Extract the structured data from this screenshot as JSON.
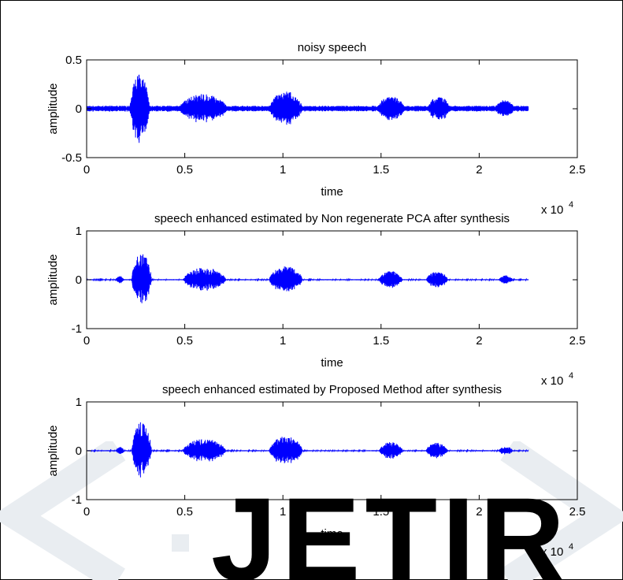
{
  "chart_data": [
    {
      "type": "line",
      "title": "noisy speech",
      "xlabel": "time",
      "ylabel": "amplitude",
      "xlim": [
        0,
        25000
      ],
      "ylim": [
        -0.5,
        0.5
      ],
      "x_ticks": [
        0,
        5000,
        10000,
        15000,
        20000,
        25000
      ],
      "x_tick_labels": [
        "0",
        "0.5",
        "1",
        "1.5",
        "2",
        "2.5"
      ],
      "x_multiplier": "x 10",
      "x_multiplier_exp": "4",
      "y_ticks": [
        -0.5,
        0,
        0.5
      ],
      "y_tick_labels": [
        "-0.5",
        "0",
        "0.5"
      ],
      "grid": false,
      "series_color": "#0000ff",
      "signal": {
        "x_range": [
          0,
          22500
        ],
        "noise_floor": 0.03,
        "segments": [
          {
            "x": [
              2200,
              3200
            ],
            "peak": 0.35
          },
          {
            "x": [
              4700,
              7200
            ],
            "peak": 0.15
          },
          {
            "x": [
              9300,
              11000
            ],
            "peak": 0.18
          },
          {
            "x": [
              14800,
              16200
            ],
            "peak": 0.13
          },
          {
            "x": [
              17400,
              18500
            ],
            "peak": 0.13
          },
          {
            "x": [
              20800,
              21800
            ],
            "peak": 0.09
          }
        ]
      }
    },
    {
      "type": "line",
      "title": "speech enhanced estimated by Non regenerate PCA after synthesis",
      "xlabel": "time",
      "ylabel": "amplitude",
      "xlim": [
        0,
        25000
      ],
      "ylim": [
        -1,
        1
      ],
      "x_ticks": [
        0,
        5000,
        10000,
        15000,
        20000,
        25000
      ],
      "x_tick_labels": [
        "0",
        "0.5",
        "1",
        "1.5",
        "2",
        "2.5"
      ],
      "x_multiplier": "x 10",
      "x_multiplier_exp": "4",
      "y_ticks": [
        -1,
        0,
        1
      ],
      "y_tick_labels": [
        "-1",
        "0",
        "1"
      ],
      "grid": false,
      "series_color": "#0000ff",
      "signal": {
        "x_range": [
          0,
          22500
        ],
        "noise_floor": 0.01,
        "segments": [
          {
            "x": [
              1500,
              1900
            ],
            "peak": 0.08
          },
          {
            "x": [
              2300,
              3300
            ],
            "peak": 0.55
          },
          {
            "x": [
              4900,
              7100
            ],
            "peak": 0.25
          },
          {
            "x": [
              9300,
              11000
            ],
            "peak": 0.28
          },
          {
            "x": [
              14900,
              16100
            ],
            "peak": 0.18
          },
          {
            "x": [
              17300,
              18400
            ],
            "peak": 0.17
          },
          {
            "x": [
              21000,
              21700
            ],
            "peak": 0.09
          }
        ]
      }
    },
    {
      "type": "line",
      "title": "speech enhanced estimated by Proposed Method after synthesis",
      "xlabel": "time",
      "ylabel": "amplitude",
      "xlim": [
        0,
        25000
      ],
      "ylim": [
        -1,
        1
      ],
      "x_ticks": [
        0,
        5000,
        10000,
        15000,
        20000,
        25000
      ],
      "x_tick_labels": [
        "0",
        "0.5",
        "1",
        "1.5",
        "2",
        "2.5"
      ],
      "x_multiplier": "x 10",
      "x_multiplier_exp": "4",
      "y_ticks": [
        -1,
        0,
        1
      ],
      "y_tick_labels": [
        "-1",
        "0",
        "1"
      ],
      "grid": false,
      "series_color": "#0000ff",
      "signal": {
        "x_range": [
          0,
          22500
        ],
        "noise_floor": 0.01,
        "segments": [
          {
            "x": [
              1500,
              1900
            ],
            "peak": 0.08
          },
          {
            "x": [
              2300,
              3300
            ],
            "peak": 0.6
          },
          {
            "x": [
              4900,
              7100
            ],
            "peak": 0.25
          },
          {
            "x": [
              9300,
              11000
            ],
            "peak": 0.3
          },
          {
            "x": [
              14900,
              16100
            ],
            "peak": 0.18
          },
          {
            "x": [
              17300,
              18400
            ],
            "peak": 0.17
          },
          {
            "x": [
              21000,
              21700
            ],
            "peak": 0.09
          }
        ]
      }
    }
  ],
  "watermark": {
    "text": "JETIR",
    "color": "#e9edf1"
  }
}
